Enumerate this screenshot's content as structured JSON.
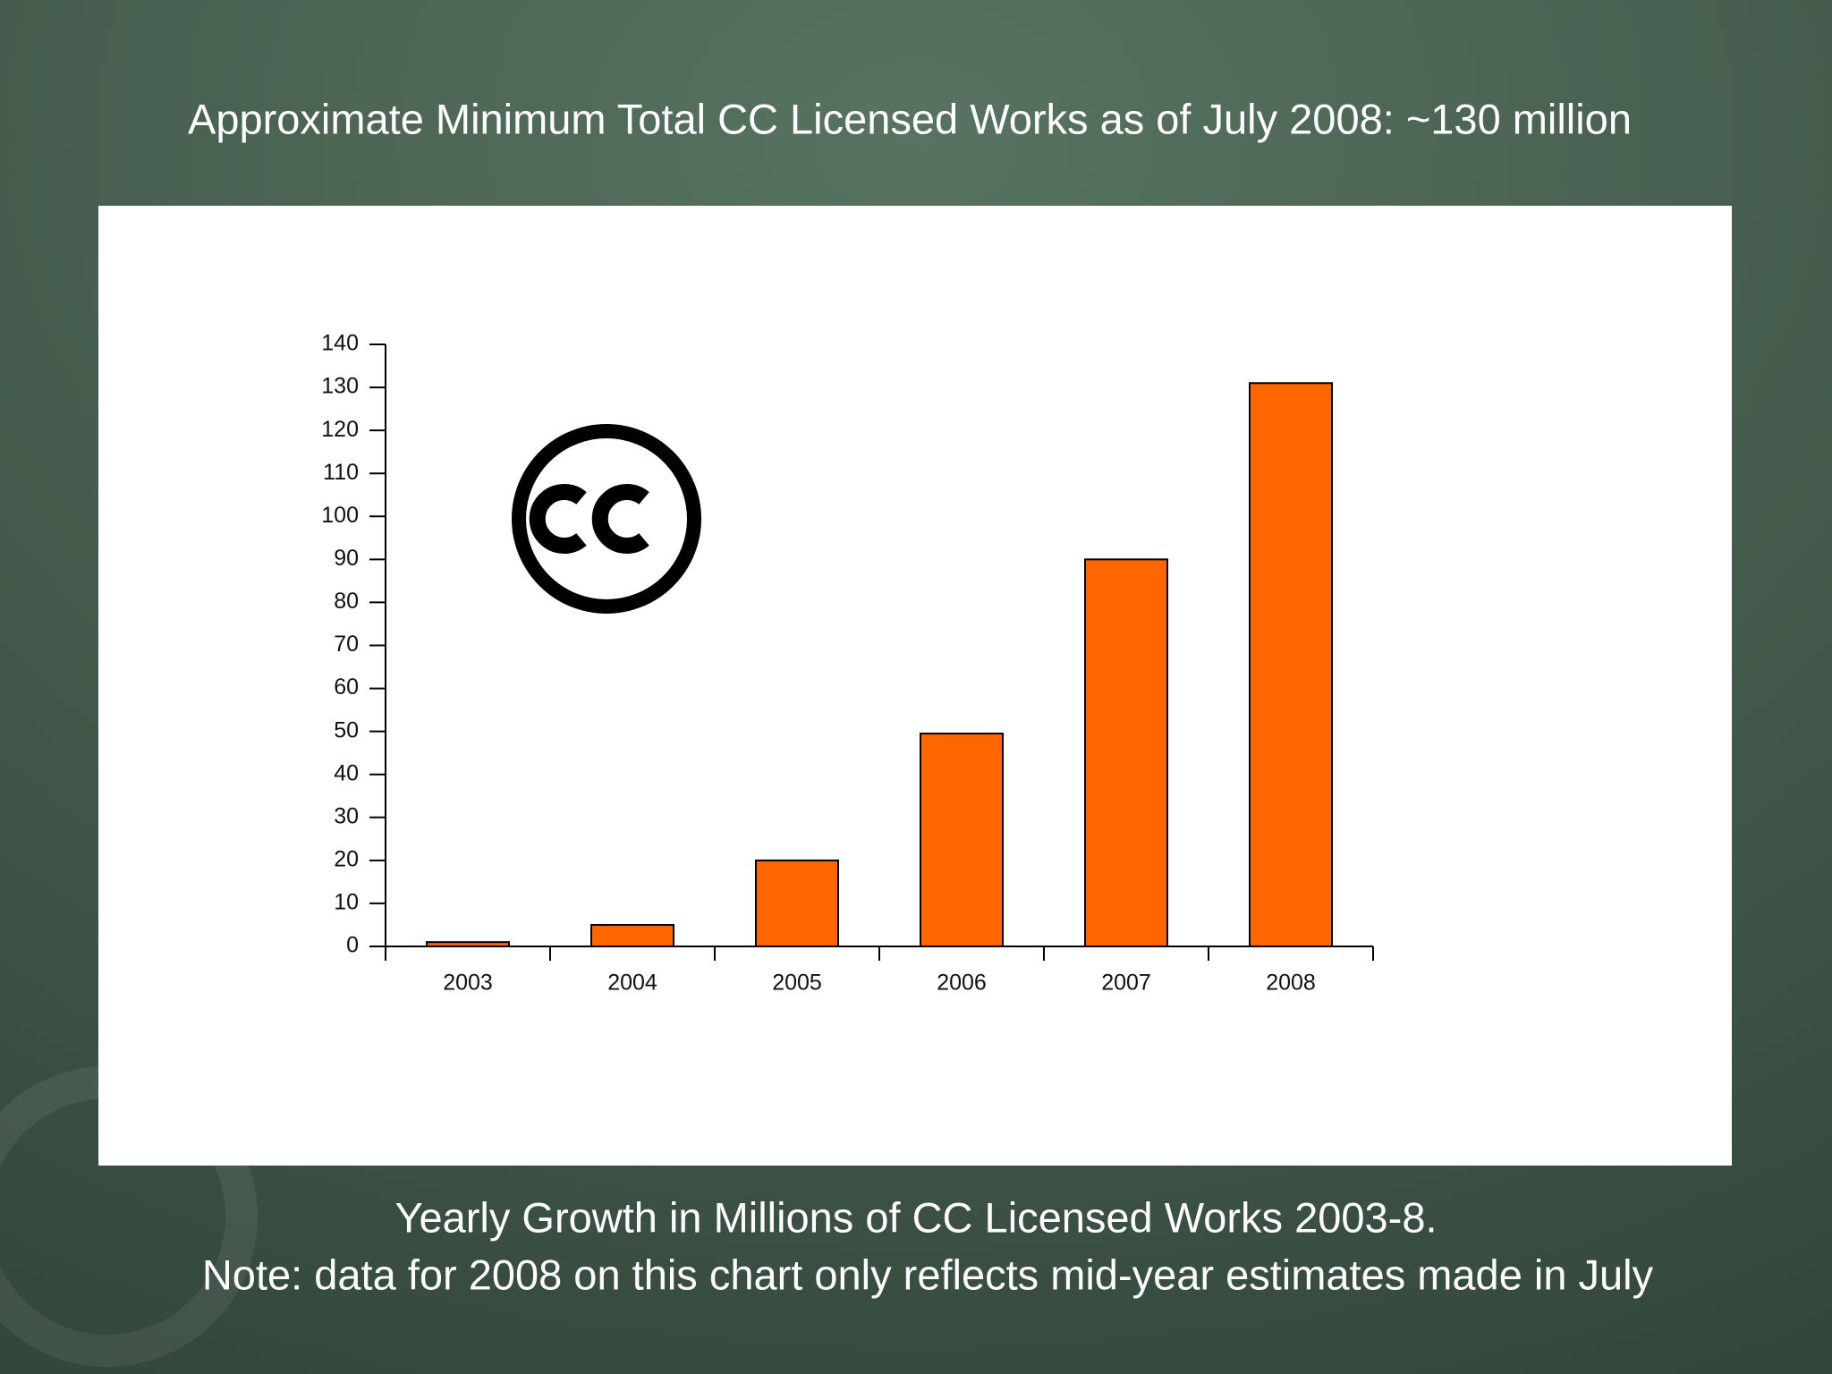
{
  "chart_data": {
    "type": "bar",
    "title": "Approximate Minimum Total CC Licensed Works as of July 2008: ~130 million",
    "notes": [
      "Yearly Growth in Millions of CC Licensed Works 2003-8.",
      "Note: data for 2008 on this chart only reflects mid-year estimates made in July"
    ],
    "categories": [
      "2003",
      "2004",
      "2005",
      "2006",
      "2007",
      "2008"
    ],
    "values": [
      1,
      5,
      20,
      49.5,
      90,
      131
    ],
    "color": "#ff6600",
    "ylim": [
      0,
      140
    ],
    "yticks": [
      0,
      10,
      20,
      30,
      40,
      50,
      60,
      70,
      80,
      90,
      100,
      110,
      120,
      130,
      140
    ],
    "grid": false
  }
}
